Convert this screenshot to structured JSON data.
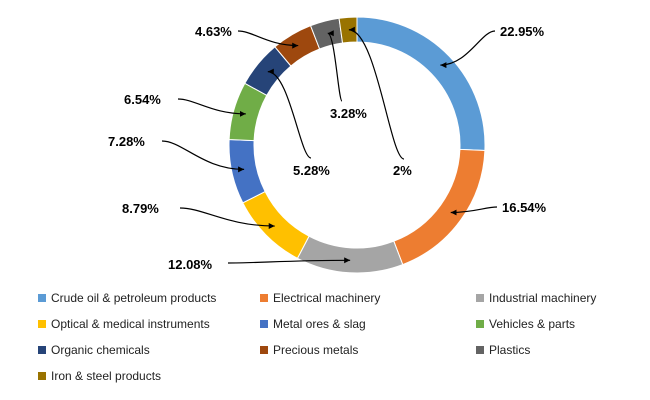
{
  "chart_data": {
    "type": "pie",
    "variant": "donut",
    "title": "",
    "slices": [
      {
        "label": "Crude oil & petroleum products",
        "value": 22.95,
        "value_label": "22.95%",
        "color": "#5B9BD5"
      },
      {
        "label": "Electrical machinery",
        "value": 16.54,
        "value_label": "16.54%",
        "color": "#ED7D31"
      },
      {
        "label": "Industrial machinery",
        "value": 12.08,
        "value_label": "12.08%",
        "color": "#A5A5A5"
      },
      {
        "label": "Optical & medical instruments",
        "value": 8.79,
        "value_label": "8.79%",
        "color": "#FFC000"
      },
      {
        "label": "Metal ores & slag",
        "value": 7.28,
        "value_label": "7.28%",
        "color": "#4472C4"
      },
      {
        "label": "Vehicles & parts",
        "value": 6.54,
        "value_label": "6.54%",
        "color": "#70AD47"
      },
      {
        "label": "Organic chemicals",
        "value": 5.28,
        "value_label": "5.28%",
        "color": "#264478"
      },
      {
        "label": "Precious metals",
        "value": 4.63,
        "value_label": "4.63%",
        "color": "#9E480E"
      },
      {
        "label": "Plastics",
        "value": 3.28,
        "value_label": "3.28%",
        "color": "#636363"
      },
      {
        "label": "Iron & steel products",
        "value": 2,
        "value_label": "2%",
        "color": "#997300"
      }
    ],
    "legend_position": "bottom"
  }
}
